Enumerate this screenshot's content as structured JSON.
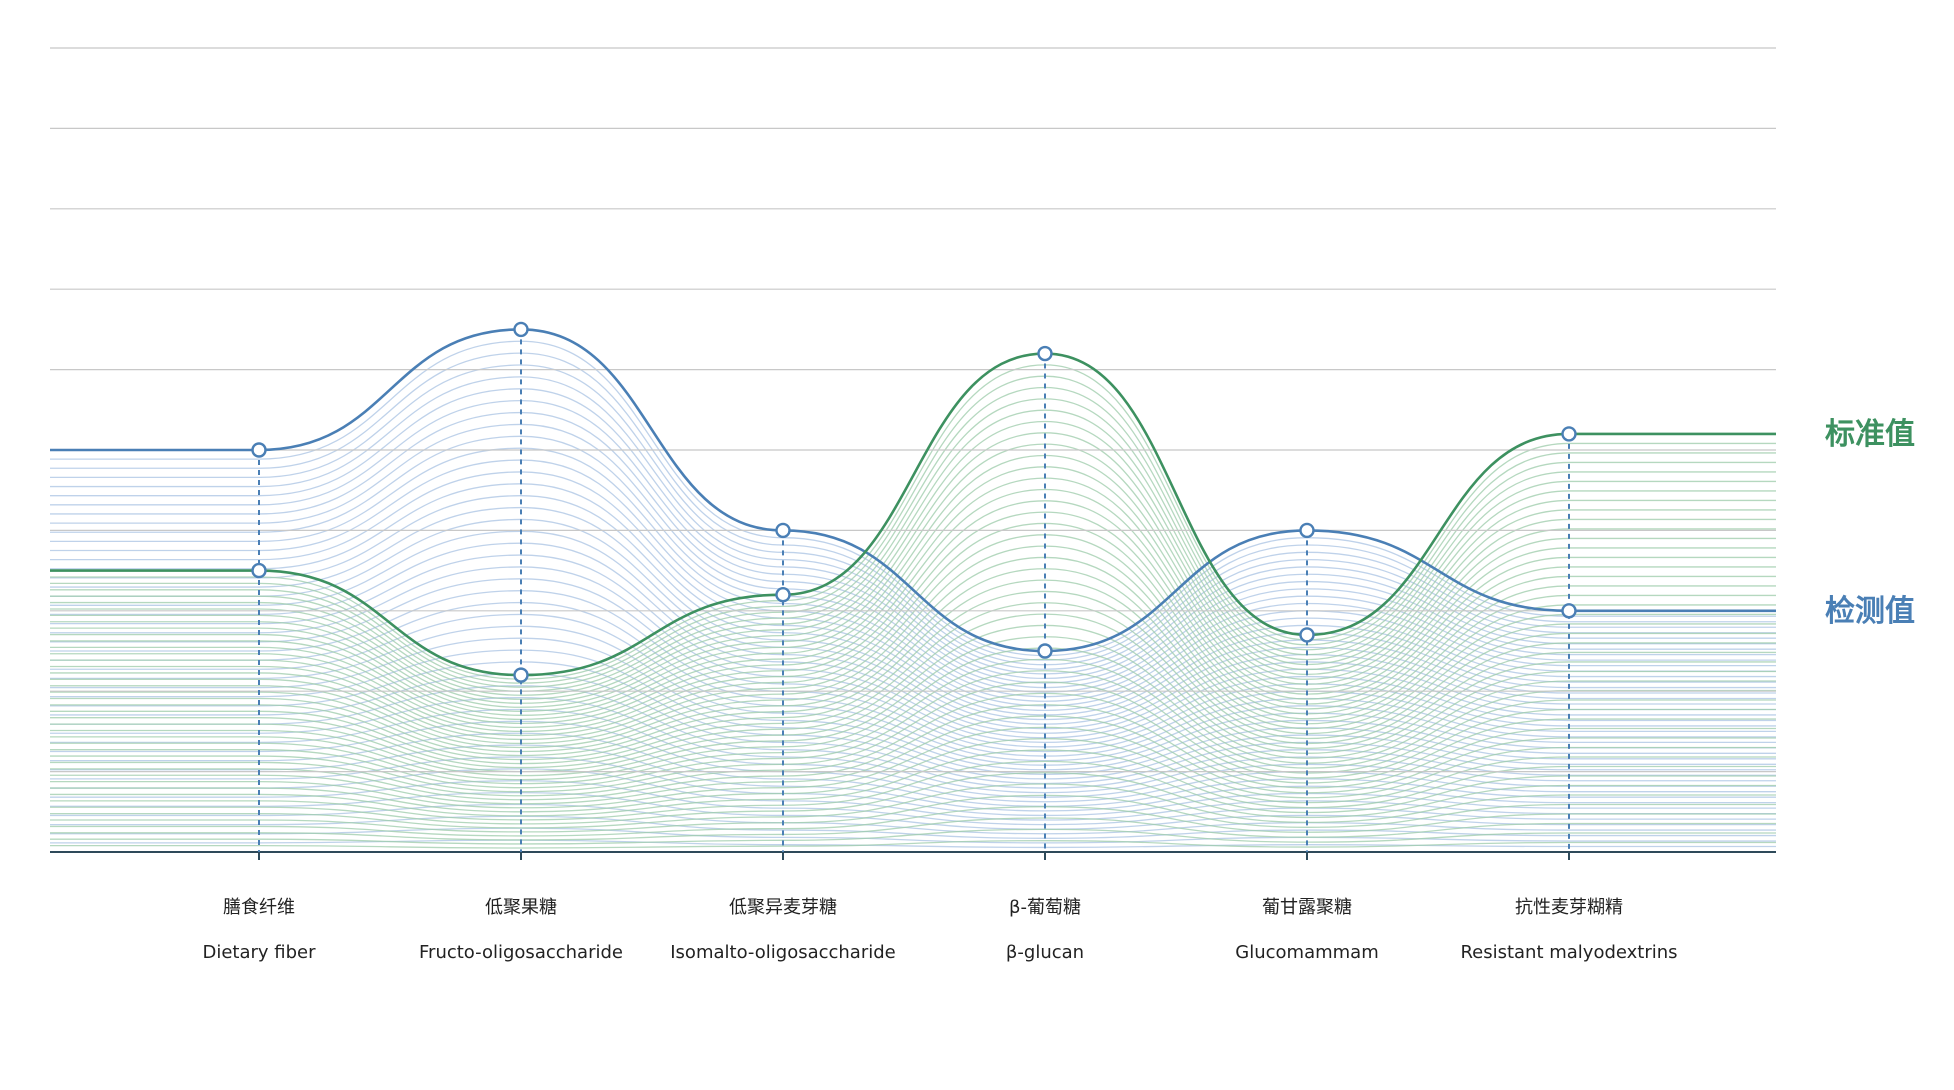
{
  "chart_data": {
    "type": "line",
    "title": "",
    "xlabel": "",
    "ylabel": "",
    "ylim": [
      0,
      10
    ],
    "grid": true,
    "categories": [
      {
        "zh": "膳食纤维",
        "en": "Dietary fiber"
      },
      {
        "zh": "低聚果糖",
        "en": "Fructo-oligosaccharide"
      },
      {
        "zh": "低聚异麦芽糖",
        "en": "Isomalto-oligosaccharide"
      },
      {
        "zh": "β-葡萄糖",
        "en": "β-glucan"
      },
      {
        "zh": "葡甘露聚糖",
        "en": "Glucomammam"
      },
      {
        "zh": "抗性麦芽糊精",
        "en": "Resistant malyodextrins"
      }
    ],
    "series": [
      {
        "name": "检测值",
        "color": "#4a7fb5",
        "fill_color": "#a9c3e3",
        "values": [
          5.0,
          6.5,
          4.0,
          2.5,
          4.0,
          3.0
        ]
      },
      {
        "name": "标准值",
        "color": "#3d9160",
        "fill_color": "#9ccbaa",
        "values": [
          3.5,
          2.2,
          3.2,
          6.2,
          2.7,
          5.2
        ]
      }
    ],
    "legend_placement": "right, at line ends"
  }
}
